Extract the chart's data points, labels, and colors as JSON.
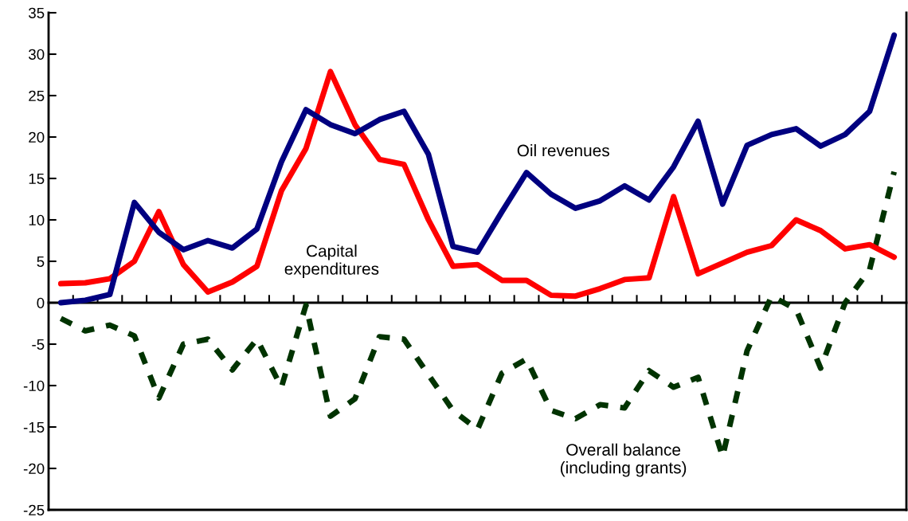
{
  "chart_data": {
    "type": "line",
    "categories": [
      null,
      null,
      null,
      null,
      null,
      null,
      null,
      null,
      null,
      null,
      null,
      null,
      null,
      null,
      null,
      null,
      null,
      null,
      null,
      null,
      null,
      null,
      null,
      null,
      null,
      null,
      null,
      null,
      null,
      null,
      null,
      null,
      null,
      null,
      null
    ],
    "series": [
      {
        "name": "Oil revenues",
        "color": "#000080",
        "line_style": "solid",
        "values": [
          0,
          0.3,
          1,
          12.1,
          8.5,
          6.4,
          7.5,
          6.6,
          8.9,
          17,
          23.3,
          21.5,
          20.4,
          22.1,
          23.1,
          17.9,
          6.8,
          6.1,
          11,
          15.7,
          13.1,
          11.4,
          12.3,
          14.1,
          12.4,
          16.4,
          21.9,
          11.9,
          19,
          20.3,
          21,
          18.9,
          20.3,
          23.1,
          32.3
        ]
      },
      {
        "name": "Capital\nexpenditures",
        "color": "#ff0000",
        "line_style": "solid",
        "values": [
          2.3,
          2.4,
          2.9,
          5,
          11,
          4.6,
          1.3,
          2.5,
          4.4,
          13.5,
          18.6,
          27.9,
          21.5,
          17.3,
          16.7,
          10,
          4.4,
          4.6,
          2.7,
          2.7,
          0.9,
          0.8,
          1.7,
          2.8,
          3,
          12.8,
          3.5,
          4.8,
          6.1,
          6.9,
          10,
          8.7,
          6.5,
          7,
          5.5
        ]
      },
      {
        "name": "Overall balance\n(including grants)",
        "color": "#003300",
        "line_style": "dashed",
        "values": [
          -1.9,
          -3.4,
          -2.7,
          -4,
          -11.5,
          -5,
          -4.4,
          -8.1,
          -4.4,
          -10.2,
          -0.3,
          -13.7,
          -11.6,
          -4.1,
          -4.4,
          -8.7,
          -13,
          -15.3,
          -8.5,
          -6.8,
          -13,
          -14,
          -12.3,
          -12.7,
          -8.2,
          -10.2,
          -9,
          -18.6,
          -5.8,
          0.8,
          -0.8,
          -7.9,
          0,
          4,
          15.8
        ]
      }
    ],
    "ylim": [
      -25,
      35
    ],
    "yticks": [
      -25,
      -20,
      -15,
      -10,
      -5,
      0,
      5,
      10,
      15,
      20,
      25,
      30,
      35
    ],
    "legend": false,
    "marker": "none",
    "tick_labels": "y"
  }
}
